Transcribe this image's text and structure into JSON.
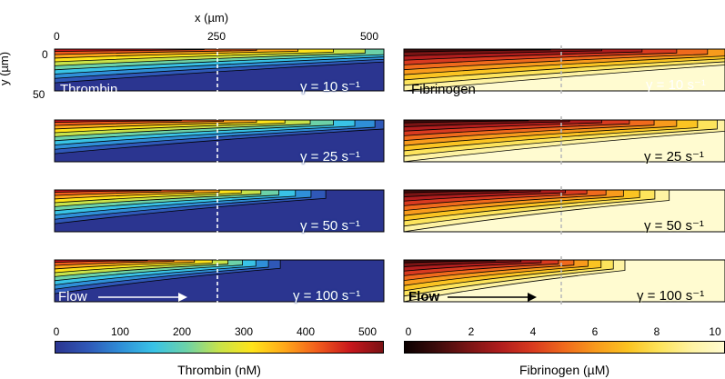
{
  "x_axis": {
    "title": "x (µm)",
    "ticks": [
      "0",
      "250",
      "500"
    ]
  },
  "y_axis": {
    "title": "y (µm)",
    "ticks": [
      "0",
      "50"
    ]
  },
  "thrombin": {
    "name": "Thrombin",
    "colorbar_title": "Thrombin (nM)",
    "colorbar_ticks": [
      "0",
      "100",
      "200",
      "300",
      "400",
      "500"
    ],
    "flow_label": "Flow",
    "panels": [
      {
        "gamma": "γ = 10 s⁻¹"
      },
      {
        "gamma": "γ = 25 s⁻¹"
      },
      {
        "gamma": "γ = 50 s⁻¹"
      },
      {
        "gamma": "γ = 100 s⁻¹"
      }
    ]
  },
  "fibrinogen": {
    "name": "Fibrinogen",
    "colorbar_title": "Fibrinogen (µM)",
    "colorbar_ticks": [
      "0",
      "2",
      "4",
      "6",
      "8",
      "10"
    ],
    "flow_label": "Flow",
    "panels": [
      {
        "gamma": "γ = 10 s⁻¹"
      },
      {
        "gamma": "γ = 25 s⁻¹"
      },
      {
        "gamma": "γ = 50 s⁻¹"
      },
      {
        "gamma": "γ = 100 s⁻¹"
      }
    ]
  },
  "colors": {
    "jet": [
      "#2b3590",
      "#2f58b8",
      "#2f8fd8",
      "#39c3e6",
      "#6cd2a8",
      "#c8e34a",
      "#ffe41a",
      "#ffa81a",
      "#f25c1c",
      "#c8171c",
      "#7a1114"
    ],
    "hot": [
      "#0a0000",
      "#3d0b0b",
      "#7a1414",
      "#b01d1d",
      "#d93a1f",
      "#f06a1c",
      "#f89b1c",
      "#fbc422",
      "#fde45c",
      "#fef3a3",
      "#fffbd0"
    ],
    "thrombin_bg": "#2b3590",
    "fibrinogen_bg": "#fffbd0"
  }
}
